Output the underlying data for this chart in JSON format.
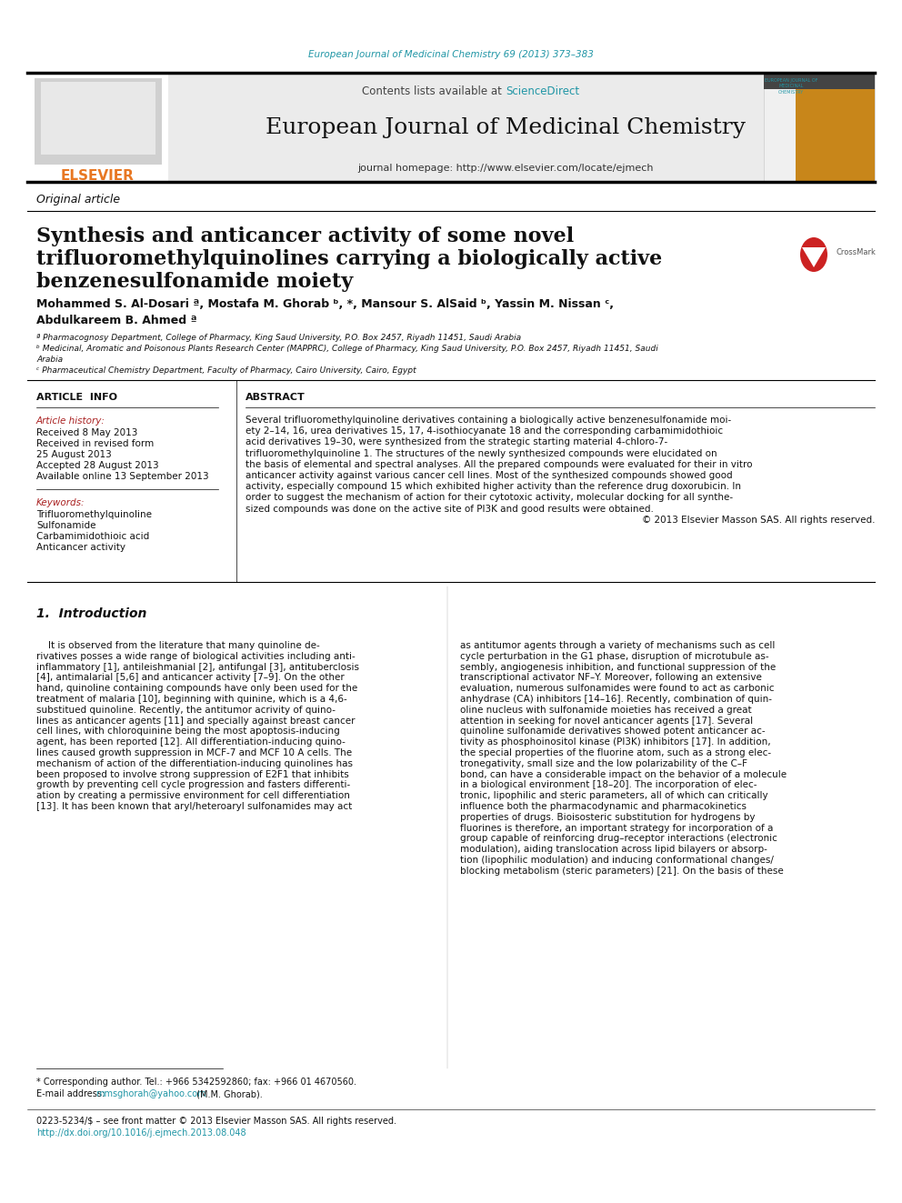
{
  "background_color": "#ffffff",
  "top_journal_ref": "European Journal of Medicinal Chemistry 69 (2013) 373–383",
  "top_journal_ref_color": "#2196A6",
  "header_bg_color": "#e8e8e8",
  "journal_name": "European Journal of Medicinal Chemistry",
  "contents_text": "Contents lists available at ",
  "sciencedirect_text": "ScienceDirect",
  "sciencedirect_color": "#2196A6",
  "homepage_text": "journal homepage: http://www.elsevier.com/locate/ejmech",
  "elsevier_color": "#E87722",
  "article_type": "Original article",
  "title_line1": "Synthesis and anticancer activity of some novel",
  "title_line2": "trifluoromethylquinolines carrying a biologically active",
  "title_line3": "benzenesulfonamide moiety",
  "authors": "Mohammed S. Al-Dosari ª, Mostafa M. Ghorab ᵇ, *, Mansour S. AlSaid ᵇ, Yassin M. Nissan ᶜ,",
  "authors2": "Abdulkareem B. Ahmed ª",
  "affil_a": "ª Pharmacognosy Department, College of Pharmacy, King Saud University, P.O. Box 2457, Riyadh 11451, Saudi Arabia",
  "affil_b1": "ᵇ Medicinal, Aromatic and Poisonous Plants Research Center (MAPPRC), College of Pharmacy, King Saud University, P.O. Box 2457, Riyadh 11451, Saudi",
  "affil_b2": "Arabia",
  "affil_c": "ᶜ Pharmaceutical Chemistry Department, Faculty of Pharmacy, Cairo University, Cairo, Egypt",
  "article_info_title": "ARTICLE  INFO",
  "article_history_label": "Article history:",
  "received": "Received 8 May 2013",
  "received_revised1": "Received in revised form",
  "received_revised2": "25 August 2013",
  "accepted": "Accepted 28 August 2013",
  "available": "Available online 13 September 2013",
  "keywords_label": "Keywords:",
  "keyword1": "Trifluoromethylquinoline",
  "keyword2": "Sulfonamide",
  "keyword3": "Carbamimidothioic acid",
  "keyword4": "Anticancer activity",
  "abstract_title": "ABSTRACT",
  "intro_section": "1.  Introduction",
  "footnote_star": "* Corresponding author. Tel.: +966 5342592860; fax: +966 01 4670560.",
  "footnote_email_pre": "E-mail address: ",
  "footnote_email": "mmsghorah@yahoo.com",
  "footnote_email_post": " (M.M. Ghorab).",
  "footnote_email_color": "#2196A6",
  "copyright_text": "0223-5234/$ – see front matter © 2013 Elsevier Masson SAS. All rights reserved.",
  "doi_text": "http://dx.doi.org/10.1016/j.ejmech.2013.08.048",
  "doi_color": "#2196A6",
  "abstract_lines": [
    "Several trifluoromethylquinoline derivatives containing a biologically active benzenesulfonamide moi-",
    "ety 2–14, 16, urea derivatives 15, 17, 4-isothiocyanate 18 and the corresponding carbamimidothioic",
    "acid derivatives 19–30, were synthesized from the strategic starting material 4-chloro-7-",
    "trifluoromethylquinoline 1. The structures of the newly synthesized compounds were elucidated on",
    "the basis of elemental and spectral analyses. All the prepared compounds were evaluated for their in vitro",
    "anticancer activity against various cancer cell lines. Most of the synthesized compounds showed good",
    "activity, especially compound 15 which exhibited higher activity than the reference drug doxorubicin. In",
    "order to suggest the mechanism of action for their cytotoxic activity, molecular docking for all synthe-",
    "sized compounds was done on the active site of PI3K and good results were obtained.",
    "© 2013 Elsevier Masson SAS. All rights reserved."
  ],
  "intro_col1_lines": [
    "    It is observed from the literature that many quinoline de-",
    "rivatives posses a wide range of biological activities including anti-",
    "inflammatory [1], antileishmanial [2], antifungal [3], antituberclosis",
    "[4], antimalarial [5,6] and anticancer activity [7–9]. On the other",
    "hand, quinoline containing compounds have only been used for the",
    "treatment of malaria [10], beginning with quinine, which is a 4,6-",
    "substitued quinoline. Recently, the antitumor acrivity of quino-",
    "lines as anticancer agents [11] and specially against breast cancer",
    "cell lines, with chloroquinine being the most apoptosis-inducing",
    "agent, has been reported [12]. All differentiation-inducing quino-",
    "lines caused growth suppression in MCF-7 and MCF 10 A cells. The",
    "mechanism of action of the differentiation-inducing quinolines has",
    "been proposed to involve strong suppression of E2F1 that inhibits",
    "growth by preventing cell cycle progression and fasters differenti-",
    "ation by creating a permissive environment for cell differentiation",
    "[13]. It has been known that aryl/heteroaryl sulfonamides may act"
  ],
  "intro_col2_lines": [
    "as antitumor agents through a variety of mechanisms such as cell",
    "cycle perturbation in the G1 phase, disruption of microtubule as-",
    "sembly, angiogenesis inhibition, and functional suppression of the",
    "transcriptional activator NF–Y. Moreover, following an extensive",
    "evaluation, numerous sulfonamides were found to act as carbonic",
    "anhydrase (CA) inhibitors [14–16]. Recently, combination of quin-",
    "oline nucleus with sulfonamide moieties has received a great",
    "attention in seeking for novel anticancer agents [17]. Several",
    "quinoline sulfonamide derivatives showed potent anticancer ac-",
    "tivity as phosphoinositol kinase (PI3K) inhibitors [17]. In addition,",
    "the special properties of the fluorine atom, such as a strong elec-",
    "tronegativity, small size and the low polarizability of the C–F",
    "bond, can have a considerable impact on the behavior of a molecule",
    "in a biological environment [18–20]. The incorporation of elec-",
    "tronic, lipophilic and steric parameters, all of which can critically",
    "influence both the pharmacodynamic and pharmacokinetics",
    "properties of drugs. Bioisosteric substitution for hydrogens by",
    "fluorines is therefore, an important strategy for incorporation of a",
    "group capable of reinforcing drug–receptor interactions (electronic",
    "modulation), aiding translocation across lipid bilayers or absorp-",
    "tion (lipophilic modulation) and inducing conformational changes/",
    "blocking metabolism (steric parameters) [21]. On the basis of these"
  ]
}
